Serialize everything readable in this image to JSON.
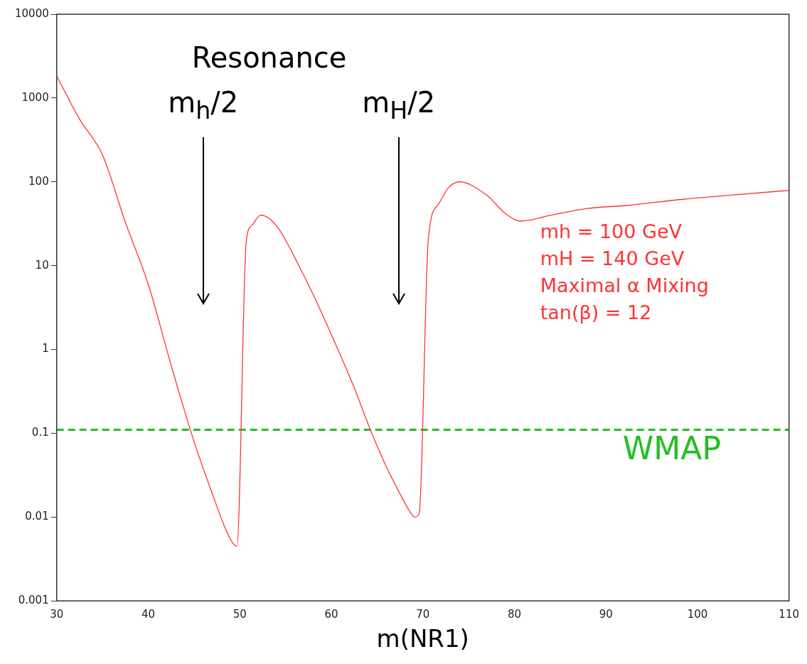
{
  "chart_data": {
    "type": "line",
    "xlabel": "m(NR1)",
    "x": [
      30,
      32.5,
      35,
      37.5,
      40,
      42.5,
      45,
      47,
      48.5,
      49.3,
      49.7,
      50.7,
      51.3,
      52.3,
      54,
      56.5,
      58.5,
      60.4,
      62.5,
      64.2,
      66,
      67.5,
      68.5,
      69.1,
      69.6,
      70.6,
      71.7,
      72.8,
      74,
      77,
      79,
      80.7,
      84,
      87.9,
      92,
      98.4,
      104,
      110
    ],
    "series": [
      {
        "color": "#ff3333",
        "values": [
          1830,
          560,
          210,
          33,
          6,
          0.65,
          0.08,
          0.019,
          0.007,
          0.0048,
          0.0045,
          19,
          30,
          40,
          30,
          9.8,
          3.5,
          1.2,
          0.35,
          0.115,
          0.04,
          0.019,
          0.012,
          0.01,
          0.011,
          21,
          54,
          85,
          100,
          69,
          42,
          34,
          40,
          48,
          52,
          62,
          70,
          79
        ]
      }
    ],
    "xlim": [
      30,
      110
    ],
    "xticks": [
      30,
      40,
      50,
      60,
      70,
      80,
      90,
      100,
      110
    ],
    "ylim": [
      0.001,
      10000
    ],
    "yticks": [
      0.001,
      0.01,
      0.1,
      1,
      10,
      100,
      1000,
      10000
    ],
    "log": "y",
    "grid": false,
    "legend": false,
    "marker": "none",
    "line_style": "solid",
    "ref_lines": [
      {
        "axis": "y",
        "value": 0.11,
        "label": "WMAP",
        "color": "#22c022",
        "line_style": "dashed"
      }
    ],
    "annotations": [
      "Resonance",
      "m$_{h}$/2",
      "m$_{H}$/2",
      "mh = 100 GeV",
      "mH = 140 GeV",
      "Maximal α Mixing",
      "tan(β) =  12"
    ]
  }
}
